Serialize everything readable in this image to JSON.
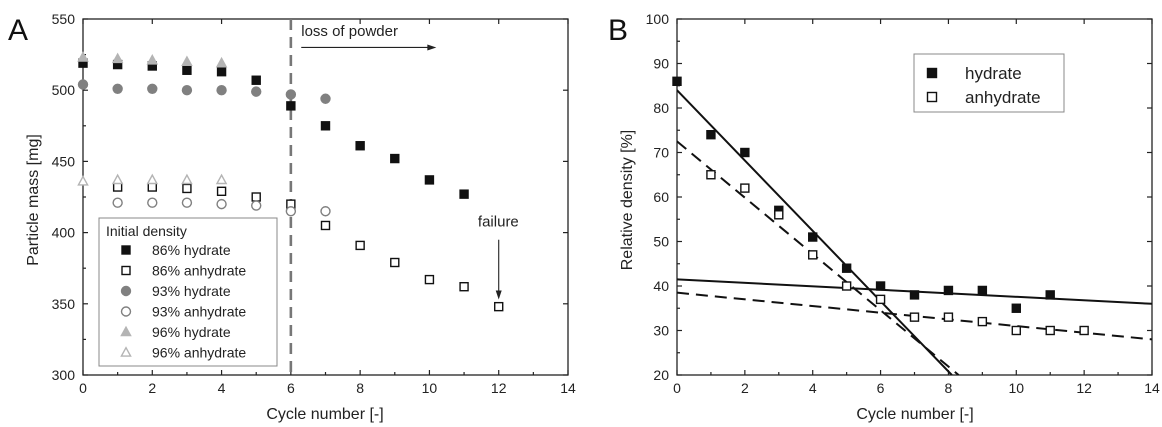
{
  "chart_data": [
    {
      "panel": "A",
      "type": "scatter",
      "xlabel": "Cycle number [-]",
      "ylabel": "Particle mass [mg]",
      "xlim": [
        0,
        14
      ],
      "ylim": [
        300,
        550
      ],
      "xticks": [
        0,
        2,
        4,
        6,
        8,
        10,
        12,
        14
      ],
      "yticks": [
        300,
        350,
        400,
        450,
        500,
        550
      ],
      "legend_title": "Initial density",
      "legend_position": "bottom-left",
      "series": [
        {
          "name": "86% hydrate",
          "marker": "square",
          "filled": true,
          "color": "#111111",
          "x": [
            0,
            1,
            2,
            3,
            4,
            5,
            6,
            7,
            8,
            9,
            10,
            11
          ],
          "y": [
            519,
            518,
            517,
            514,
            513,
            507,
            489,
            475,
            461,
            452,
            437,
            427
          ]
        },
        {
          "name": "86% anhydrate",
          "marker": "square",
          "filled": false,
          "color": "#111111",
          "x": [
            1,
            2,
            3,
            4,
            5,
            6,
            7,
            8,
            9,
            10,
            11,
            12
          ],
          "y": [
            432,
            432,
            431,
            429,
            425,
            420,
            405,
            391,
            379,
            367,
            362,
            348
          ]
        },
        {
          "name": "93% hydrate",
          "marker": "circle",
          "filled": true,
          "color": "#808080",
          "x": [
            0,
            1,
            2,
            3,
            4,
            5,
            6,
            7
          ],
          "y": [
            504,
            501,
            501,
            500,
            500,
            499,
            497,
            494
          ]
        },
        {
          "name": "93% anhydrate",
          "marker": "circle",
          "filled": false,
          "color": "#808080",
          "x": [
            1,
            2,
            3,
            4,
            5,
            6,
            7
          ],
          "y": [
            421,
            421,
            421,
            420,
            419,
            415,
            415
          ]
        },
        {
          "name": "96% hydrate",
          "marker": "triangle",
          "filled": true,
          "color": "#b4b4b4",
          "x": [
            0,
            1,
            2,
            3,
            4
          ],
          "y": [
            523,
            522,
            521,
            520,
            519
          ]
        },
        {
          "name": "96% anhydrate",
          "marker": "triangle",
          "filled": false,
          "color": "#b4b4b4",
          "x": [
            0,
            1,
            2,
            3,
            4
          ],
          "y": [
            436,
            437,
            437,
            437,
            437
          ]
        }
      ],
      "vline": {
        "x": 6,
        "style": "dashed",
        "color": "#777777"
      },
      "annotations": [
        {
          "text": "loss of powder",
          "x": 6.3,
          "y": 538,
          "arrow": {
            "from": [
              6.3,
              530
            ],
            "to": [
              10.2,
              530
            ]
          }
        },
        {
          "text": "failure",
          "x": 11.4,
          "y": 403,
          "arrow": {
            "from": [
              12,
              395
            ],
            "to": [
              12,
              353
            ]
          }
        }
      ]
    },
    {
      "panel": "B",
      "type": "scatter",
      "xlabel": "Cycle number [-]",
      "ylabel": "Relative density [%]",
      "xlim": [
        0,
        14
      ],
      "ylim": [
        20,
        100
      ],
      "xticks": [
        0,
        2,
        4,
        6,
        8,
        10,
        12,
        14
      ],
      "yticks": [
        20,
        30,
        40,
        50,
        60,
        70,
        80,
        90,
        100
      ],
      "legend_position": "top-right",
      "series": [
        {
          "name": "hydrate",
          "marker": "square",
          "filled": true,
          "color": "#111111",
          "x": [
            0,
            1,
            2,
            3,
            4,
            5,
            6,
            7,
            8,
            9,
            10,
            11
          ],
          "y": [
            86,
            74,
            70,
            57,
            51,
            44,
            40,
            38,
            39,
            39,
            35,
            38
          ]
        },
        {
          "name": "anhydrate",
          "marker": "square",
          "filled": false,
          "color": "#111111",
          "x": [
            1,
            2,
            3,
            4,
            5,
            6,
            7,
            8,
            9,
            10,
            11,
            12
          ],
          "y": [
            65,
            62,
            56,
            47,
            40,
            37,
            33,
            33,
            32,
            30,
            30,
            30
          ]
        }
      ],
      "fit_lines": [
        {
          "series": "hydrate",
          "style": "solid",
          "x": [
            0,
            8.1
          ],
          "y": [
            84,
            20
          ]
        },
        {
          "series": "hydrate",
          "style": "solid",
          "x": [
            0,
            14
          ],
          "y": [
            41.5,
            36
          ]
        },
        {
          "series": "anhydrate",
          "style": "dashed",
          "x": [
            0,
            8.3
          ],
          "y": [
            72.5,
            20
          ]
        },
        {
          "series": "anhydrate",
          "style": "dashed",
          "x": [
            0,
            14
          ],
          "y": [
            38.5,
            28
          ]
        }
      ]
    }
  ]
}
